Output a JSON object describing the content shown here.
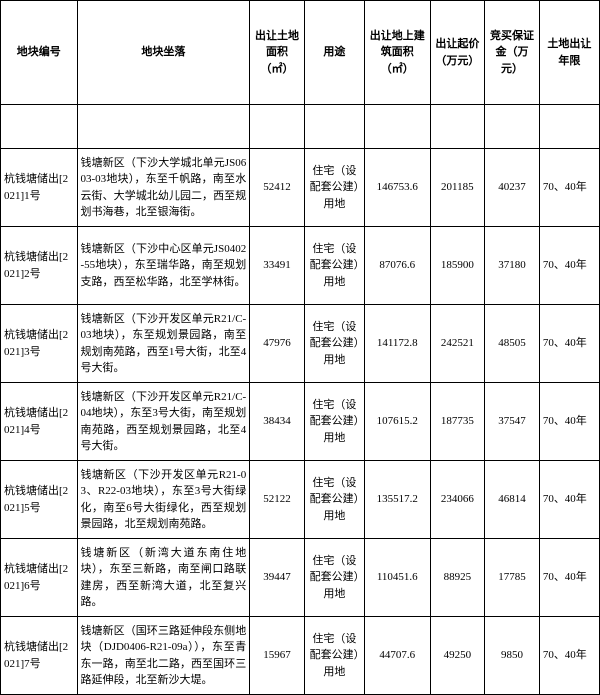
{
  "headers": {
    "id": "地块编号",
    "location": "地块坐落",
    "land_area": "出让土地面积（㎡）",
    "use": "用途",
    "build_area": "出让地上建筑面积（㎡）",
    "start_price": "出让起价（万元）",
    "deposit": "竞买保证金（万元）",
    "term": "土地出让年限"
  },
  "rows": [
    {
      "id": "杭钱塘储出[2021]1号",
      "location": "钱塘新区（下沙大学城北单元JS0603-03地块），东至千帆路，南至水云街、大学城北幼儿园二，西至规划书海巷，北至银海街。",
      "land_area": "52412",
      "use": "住宅（设配套公建）用地",
      "build_area": "146753.6",
      "start_price": "201185",
      "deposit": "40237",
      "term": "70、40年"
    },
    {
      "id": "杭钱塘储出[2021]2号",
      "location": "钱塘新区（下沙中心区单元JS0402-55地块），东至瑞华路，南至规划支路，西至松华路，北至学林街。",
      "land_area": "33491",
      "use": "住宅（设配套公建）用地",
      "build_area": "87076.6",
      "start_price": "185900",
      "deposit": "37180",
      "term": "70、40年"
    },
    {
      "id": "杭钱塘储出[2021]3号",
      "location": "钱塘新区（下沙开发区单元R21/C-03地块），东至规划景园路，南至规划南苑路，西至1号大街，北至4号大街。",
      "land_area": "47976",
      "use": "住宅（设配套公建）用地",
      "build_area": "141172.8",
      "start_price": "242521",
      "deposit": "48505",
      "term": "70、40年"
    },
    {
      "id": "杭钱塘储出[2021]4号",
      "location": "钱塘新区（下沙开发区单元R21/C-04地块），东至3号大街，南至规划南苑路，西至规划景园路，北至4号大街。",
      "land_area": "38434",
      "use": "住宅（设配套公建）用地",
      "build_area": "107615.2",
      "start_price": "187735",
      "deposit": "37547",
      "term": "70、40年"
    },
    {
      "id": "杭钱塘储出[2021]5号",
      "location": "钱塘新区（下沙开发区单元R21-03、R22-03地块），东至3号大街绿化，南至6号大街绿化，西至规划景园路，北至规划南苑路。",
      "land_area": "52122",
      "use": "住宅（设配套公建）用地",
      "build_area": "135517.2",
      "start_price": "234066",
      "deposit": "46814",
      "term": "70、40年"
    },
    {
      "id": "杭钱塘储出[2021]6号",
      "location": "钱塘新区（新湾大道东南住地块），东至三新路，南至闸口路联建房，西至新湾大道，北至复兴路。",
      "land_area": "39447",
      "use": "住宅（设配套公建）用地",
      "build_area": "110451.6",
      "start_price": "88925",
      "deposit": "17785",
      "term": "70、40年"
    },
    {
      "id": "杭钱塘储出[2021]7号",
      "location": "钱塘新区（国环三路延伸段东侧地块（DJD0406-R21-09a）），东至青东一路，南至北二路，西至国环三路延伸段，北至新沙大堤。",
      "land_area": "15967",
      "use": "住宅（设配套公建）用地",
      "build_area": "44707.6",
      "start_price": "49250",
      "deposit": "9850",
      "term": "70、40年"
    }
  ]
}
